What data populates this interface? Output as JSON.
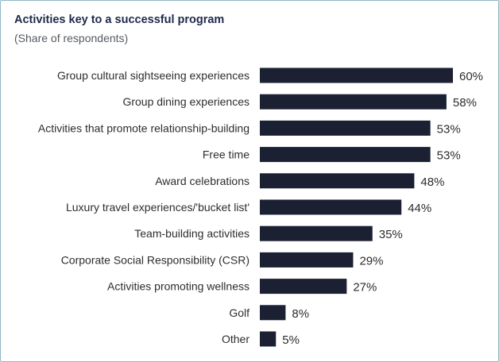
{
  "chart_data": {
    "type": "bar",
    "orientation": "horizontal",
    "title": "Activities key to a successful program",
    "subtitle": "(Share of respondents)",
    "categories": [
      "Group cultural sightseeing experiences",
      "Group dining experiences",
      "Activities that promote relationship-building",
      "Free time",
      "Award celebrations",
      "Luxury travel experiences/'bucket list'",
      "Team-building activities",
      "Corporate Social Responsibility (CSR)",
      "Activities promoting wellness",
      "Golf",
      "Other"
    ],
    "values": [
      60,
      58,
      53,
      53,
      48,
      44,
      35,
      29,
      27,
      8,
      5
    ],
    "value_labels": [
      "60%",
      "58%",
      "53%",
      "53%",
      "48%",
      "44%",
      "35%",
      "29%",
      "27%",
      "8%",
      "5%"
    ],
    "unit": "%",
    "bar_color": "#1b2033",
    "grid": false,
    "legend": "none"
  }
}
